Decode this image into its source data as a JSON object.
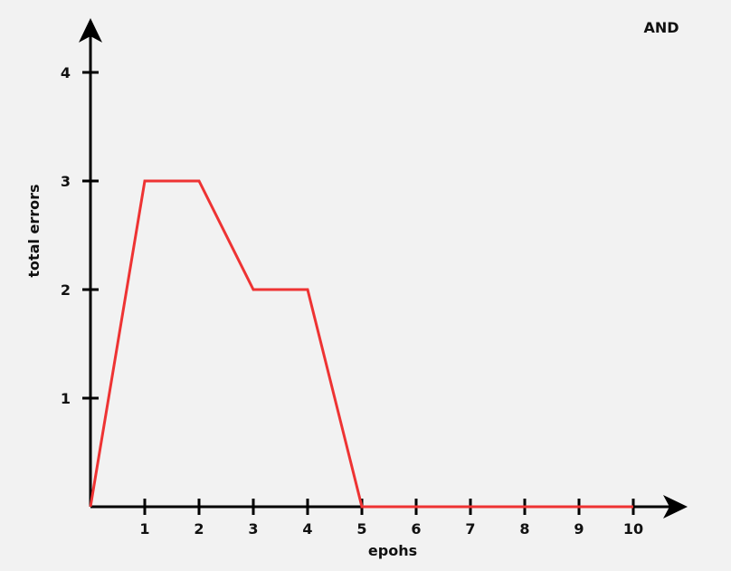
{
  "chart_data": {
    "type": "line",
    "title": "AND",
    "xlabel": "epohs",
    "ylabel": "total errors",
    "x_ticks": [
      "1",
      "2",
      "3",
      "4",
      "5",
      "6",
      "7",
      "8",
      "9",
      "10"
    ],
    "y_ticks": [
      "1",
      "2",
      "3",
      "4"
    ],
    "xlim": [
      0,
      10
    ],
    "ylim": [
      0,
      4
    ],
    "grid": false,
    "series": [
      {
        "x": [
          0,
          1,
          2,
          3,
          4,
          5,
          6,
          7,
          8,
          9,
          10
        ],
        "y": [
          0,
          3,
          3,
          2,
          2,
          0,
          0,
          0,
          0,
          0,
          0
        ],
        "color": "#ee3333"
      }
    ],
    "axis_color": "#000000"
  }
}
